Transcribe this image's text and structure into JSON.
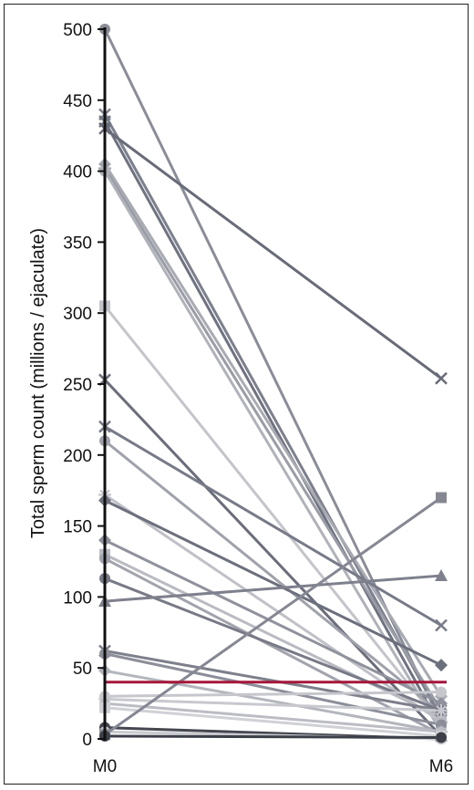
{
  "chart_data": {
    "type": "line",
    "title": "",
    "xlabel": "",
    "ylabel": "Total sperm count (millions / ejaculate)",
    "x": [
      "M0",
      "M6"
    ],
    "ylim": [
      0,
      500
    ],
    "yticks": [
      0,
      50,
      100,
      150,
      200,
      250,
      300,
      350,
      400,
      450,
      500
    ],
    "threshold": {
      "value": 40,
      "color": "#a6163a"
    },
    "grid": false,
    "legend": "none",
    "series": [
      {
        "values": [
          500,
          12
        ],
        "marker": "circle",
        "color": "#8a8d98"
      },
      {
        "values": [
          440,
          15
        ],
        "marker": "x",
        "color": "#7c7f8c"
      },
      {
        "values": [
          435,
          8
        ],
        "marker": "x",
        "color": "#6f7280"
      },
      {
        "values": [
          430,
          254
        ],
        "marker": "x",
        "color": "#686b78"
      },
      {
        "values": [
          405,
          30
        ],
        "marker": "diamond",
        "color": "#a9abb3"
      },
      {
        "values": [
          402,
          20
        ],
        "marker": "plus",
        "color": "#9a9ca6"
      },
      {
        "values": [
          400,
          5
        ],
        "marker": "circle",
        "color": "#b0b2ba"
      },
      {
        "values": [
          305,
          10
        ],
        "marker": "square",
        "color": "#c4c5cb"
      },
      {
        "values": [
          253,
          2
        ],
        "marker": "x",
        "color": "#6a6d7a"
      },
      {
        "values": [
          220,
          80
        ],
        "marker": "x",
        "color": "#777a87"
      },
      {
        "values": [
          210,
          18
        ],
        "marker": "circle",
        "color": "#9fa1ab"
      },
      {
        "values": [
          172,
          12
        ],
        "marker": "plus",
        "color": "#c0c1c8"
      },
      {
        "values": [
          168,
          52
        ],
        "marker": "diamond",
        "color": "#6c6f7c"
      },
      {
        "values": [
          140,
          25
        ],
        "marker": "diamond",
        "color": "#8f929c"
      },
      {
        "values": [
          130,
          15
        ],
        "marker": "square",
        "color": "#b9bac2"
      },
      {
        "values": [
          127,
          3
        ],
        "marker": "circle",
        "color": "#a2a4ad"
      },
      {
        "values": [
          113,
          20
        ],
        "marker": "circle",
        "color": "#777a86"
      },
      {
        "values": [
          97,
          115
        ],
        "marker": "triangle",
        "color": "#7e818d"
      },
      {
        "values": [
          62,
          20
        ],
        "marker": "x",
        "color": "#7d808b"
      },
      {
        "values": [
          60,
          10
        ],
        "marker": "circle",
        "color": "#8c8f99"
      },
      {
        "values": [
          48,
          5
        ],
        "marker": "diamond",
        "color": "#b4b6bd"
      },
      {
        "values": [
          30,
          33
        ],
        "marker": "circle",
        "color": "#c6c7cd"
      },
      {
        "values": [
          28,
          20
        ],
        "marker": "plus",
        "color": "#c8c9cf"
      },
      {
        "values": [
          25,
          5
        ],
        "marker": "circle",
        "color": "#bcbdc4"
      },
      {
        "values": [
          22,
          2
        ],
        "marker": "square",
        "color": "#d0d1d6"
      },
      {
        "values": [
          8,
          0
        ],
        "marker": "circle",
        "color": "#444650"
      },
      {
        "values": [
          5,
          0
        ],
        "marker": "circle",
        "color": "#c9cacf"
      },
      {
        "values": [
          3,
          170
        ],
        "marker": "square",
        "color": "#858893"
      },
      {
        "values": [
          2,
          1
        ],
        "marker": "circle",
        "color": "#3d3f48"
      }
    ]
  }
}
